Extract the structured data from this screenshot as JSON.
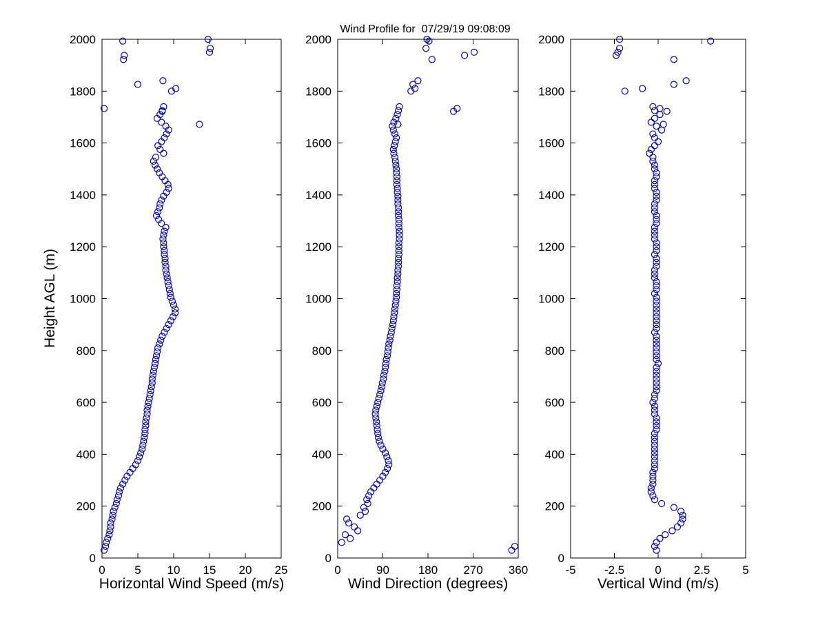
{
  "colors": {
    "marker": "#0000cc",
    "axis": "#000000",
    "background": "#ffffff"
  },
  "chart_data": {
    "type": "scatter",
    "title": "Wind Profile for  07/29/19 09:08:09",
    "ylabel": "Height AGL (m)",
    "ylim": [
      0,
      2000
    ],
    "yticks": [
      0,
      200,
      400,
      600,
      800,
      1000,
      1200,
      1400,
      1600,
      1800,
      2000
    ],
    "marker": "open-circle",
    "legend": "none",
    "grid": false,
    "heights": [
      30,
      45,
      60,
      75,
      90,
      105,
      120,
      135,
      150,
      165,
      180,
      195,
      210,
      225,
      240,
      255,
      270,
      285,
      300,
      315,
      330,
      345,
      360,
      375,
      390,
      405,
      420,
      435,
      450,
      465,
      480,
      495,
      510,
      525,
      540,
      555,
      570,
      585,
      600,
      615,
      630,
      645,
      660,
      675,
      690,
      705,
      720,
      735,
      750,
      765,
      780,
      795,
      810,
      825,
      840,
      855,
      870,
      885,
      900,
      915,
      930,
      945,
      960,
      975,
      990,
      1005,
      1020,
      1035,
      1050,
      1065,
      1080,
      1095,
      1110,
      1125,
      1140,
      1155,
      1170,
      1185,
      1200,
      1215,
      1230,
      1245,
      1260,
      1275,
      1290,
      1305,
      1320,
      1335,
      1350,
      1365,
      1380,
      1395,
      1410,
      1425,
      1440,
      1455,
      1470,
      1485,
      1500,
      1515,
      1530,
      1545,
      1560,
      1575,
      1590,
      1605,
      1620,
      1635,
      1650,
      1665,
      1680,
      1695,
      1710,
      1725,
      1740,
      1672,
      1722,
      1733,
      1800,
      1810,
      1826,
      1840,
      1922,
      1938,
      1950,
      1965,
      1993,
      2000
    ],
    "panels": [
      {
        "name": "horizontal-wind-speed",
        "xlabel": "Horizontal Wind Speed (m/s)",
        "xlim": [
          0,
          25
        ],
        "xticks": [
          0,
          5,
          10,
          15,
          20,
          25
        ],
        "values": [
          0.3,
          0.5,
          0.6,
          0.8,
          1.0,
          1.1,
          1.2,
          1.2,
          1.4,
          1.5,
          1.6,
          1.8,
          2.0,
          2.1,
          2.3,
          2.4,
          2.6,
          2.9,
          3.2,
          3.5,
          3.9,
          4.3,
          4.7,
          5.0,
          5.2,
          5.4,
          5.6,
          5.7,
          5.8,
          5.9,
          6.0,
          6.0,
          6.1,
          6.1,
          6.2,
          6.3,
          6.3,
          6.4,
          6.5,
          6.6,
          6.7,
          6.8,
          6.9,
          7.0,
          7.0,
          7.1,
          7.2,
          7.3,
          7.4,
          7.5,
          7.6,
          7.7,
          7.8,
          8.0,
          8.2,
          8.4,
          8.7,
          9.0,
          9.3,
          9.6,
          9.9,
          10.2,
          10.2,
          10.0,
          9.8,
          9.6,
          9.5,
          9.4,
          9.3,
          9.2,
          9.1,
          9.0,
          8.9,
          8.9,
          8.8,
          8.8,
          8.7,
          8.7,
          8.6,
          8.6,
          8.5,
          8.6,
          8.7,
          8.9,
          8.3,
          7.9,
          7.6,
          7.8,
          8.0,
          8.1,
          8.3,
          8.6,
          9.0,
          9.3,
          9.2,
          8.8,
          8.4,
          8.0,
          7.7,
          7.4,
          7.2,
          7.5,
          8.6,
          8.1,
          7.8,
          8.3,
          8.7,
          9.0,
          9.3,
          8.9,
          8.3,
          7.7,
          8.1,
          8.4,
          8.6,
          13.6,
          8.4,
          0.3,
          9.7,
          10.3,
          5.0,
          8.5,
          3.0,
          3.1,
          15.0,
          15.1,
          2.9,
          14.8
        ]
      },
      {
        "name": "wind-direction",
        "xlabel": "Wind Direction (degrees)",
        "xlim": [
          0,
          360
        ],
        "xticks": [
          0,
          90,
          180,
          270,
          360
        ],
        "values": [
          347,
          353,
          8,
          25,
          15,
          40,
          33,
          22,
          18,
          45,
          55,
          52,
          60,
          58,
          62,
          66,
          72,
          78,
          84,
          90,
          95,
          99,
          102,
          101,
          98,
          95,
          90,
          86,
          83,
          81,
          80,
          79,
          78,
          77,
          76,
          75,
          76,
          78,
          80,
          82,
          84,
          86,
          88,
          89,
          91,
          92,
          94,
          95,
          96,
          97,
          99,
          100,
          101,
          102,
          104,
          105,
          107,
          108,
          110,
          111,
          112,
          113,
          114,
          115,
          116,
          117,
          117,
          118,
          118,
          119,
          119,
          120,
          120,
          121,
          121,
          121,
          122,
          122,
          122,
          122,
          123,
          123,
          123,
          122,
          122,
          122,
          121,
          121,
          121,
          120,
          120,
          120,
          119,
          119,
          118,
          118,
          118,
          117,
          117,
          116,
          115,
          114,
          112,
          111,
          113,
          115,
          117,
          114,
          111,
          109,
          112,
          116,
          119,
          121,
          123,
          120,
          231,
          238,
          146,
          154,
          150,
          160,
          188,
          253,
          272,
          176,
          182,
          178
        ]
      },
      {
        "name": "vertical-wind",
        "xlabel": "Vertical Wind (m/s)",
        "xlim": [
          -5,
          5
        ],
        "xticks": [
          -5,
          -2.5,
          0,
          2.5,
          5
        ],
        "values": [
          -0.1,
          -0.2,
          -0.1,
          0.1,
          0.4,
          0.8,
          1.1,
          1.3,
          1.4,
          1.4,
          1.3,
          0.9,
          0.2,
          -0.2,
          -0.3,
          -0.4,
          -0.4,
          -0.3,
          -0.3,
          -0.3,
          -0.3,
          -0.2,
          -0.2,
          -0.2,
          -0.2,
          -0.2,
          -0.2,
          -0.2,
          -0.2,
          -0.2,
          -0.2,
          -0.1,
          -0.1,
          -0.1,
          -0.1,
          -0.2,
          -0.2,
          -0.2,
          -0.3,
          -0.2,
          -0.2,
          -0.1,
          -0.1,
          -0.1,
          -0.1,
          -0.1,
          -0.1,
          -0.1,
          0.0,
          -0.1,
          -0.1,
          -0.1,
          -0.1,
          -0.1,
          -0.1,
          -0.1,
          -0.2,
          -0.1,
          -0.1,
          -0.1,
          -0.1,
          -0.1,
          -0.1,
          -0.1,
          -0.1,
          -0.1,
          -0.2,
          -0.1,
          -0.1,
          -0.1,
          -0.2,
          -0.2,
          -0.2,
          -0.1,
          -0.1,
          -0.1,
          -0.2,
          -0.1,
          -0.1,
          -0.1,
          -0.2,
          -0.2,
          -0.2,
          -0.2,
          -0.1,
          -0.1,
          -0.1,
          -0.2,
          -0.2,
          -0.2,
          -0.1,
          -0.1,
          -0.1,
          -0.2,
          -0.2,
          -0.2,
          -0.1,
          -0.1,
          -0.2,
          -0.2,
          -0.3,
          -0.3,
          -0.5,
          -0.4,
          -0.2,
          0.0,
          -0.2,
          -0.3,
          0.2,
          -0.1,
          -0.4,
          -0.2,
          0.1,
          -0.2,
          -0.3,
          0.3,
          0.5,
          0.1,
          -1.9,
          -0.9,
          0.9,
          1.6,
          0.9,
          -2.4,
          -2.3,
          -2.2,
          3.0,
          -2.2
        ]
      }
    ]
  }
}
